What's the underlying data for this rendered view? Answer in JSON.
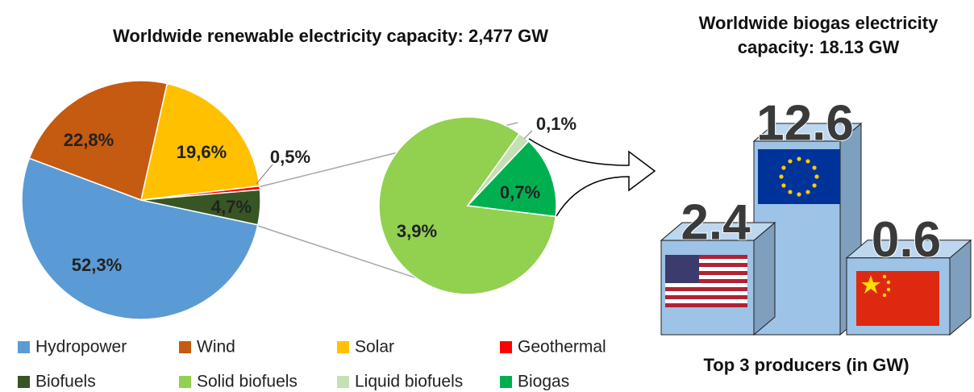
{
  "chart_data": [
    {
      "type": "pie",
      "title": "Worldwide renewable electricity capacity: 2,477 GW",
      "categories": [
        "Hydropower",
        "Wind",
        "Solar",
        "Geothermal",
        "Biofuels"
      ],
      "values": [
        52.3,
        22.8,
        19.6,
        0.5,
        4.7
      ],
      "value_labels": [
        "52,3%",
        "22,8%",
        "19,6%",
        "0,5%",
        "4,7%"
      ],
      "colors": [
        "#5b9bd5",
        "#c55a11",
        "#ffc000",
        "#ff0000",
        "#375623"
      ]
    },
    {
      "type": "pie",
      "categories": [
        "Solid biofuels",
        "Liquid biofuels",
        "Biogas"
      ],
      "values": [
        3.9,
        0.1,
        0.7
      ],
      "value_labels": [
        "3,9%",
        "0,1%",
        "0,7%"
      ],
      "colors": [
        "#92d050",
        "#c5e0b4",
        "#00b050"
      ]
    },
    {
      "type": "bar",
      "title": "Worldwide biogas electricity capacity: 18.13 GW",
      "xlabel": "Top 3 producers (in GW)",
      "categories": [
        null,
        null,
        null
      ],
      "values": [
        2.4,
        12.6,
        0.6
      ],
      "color": "#9dc3e6"
    }
  ]
}
